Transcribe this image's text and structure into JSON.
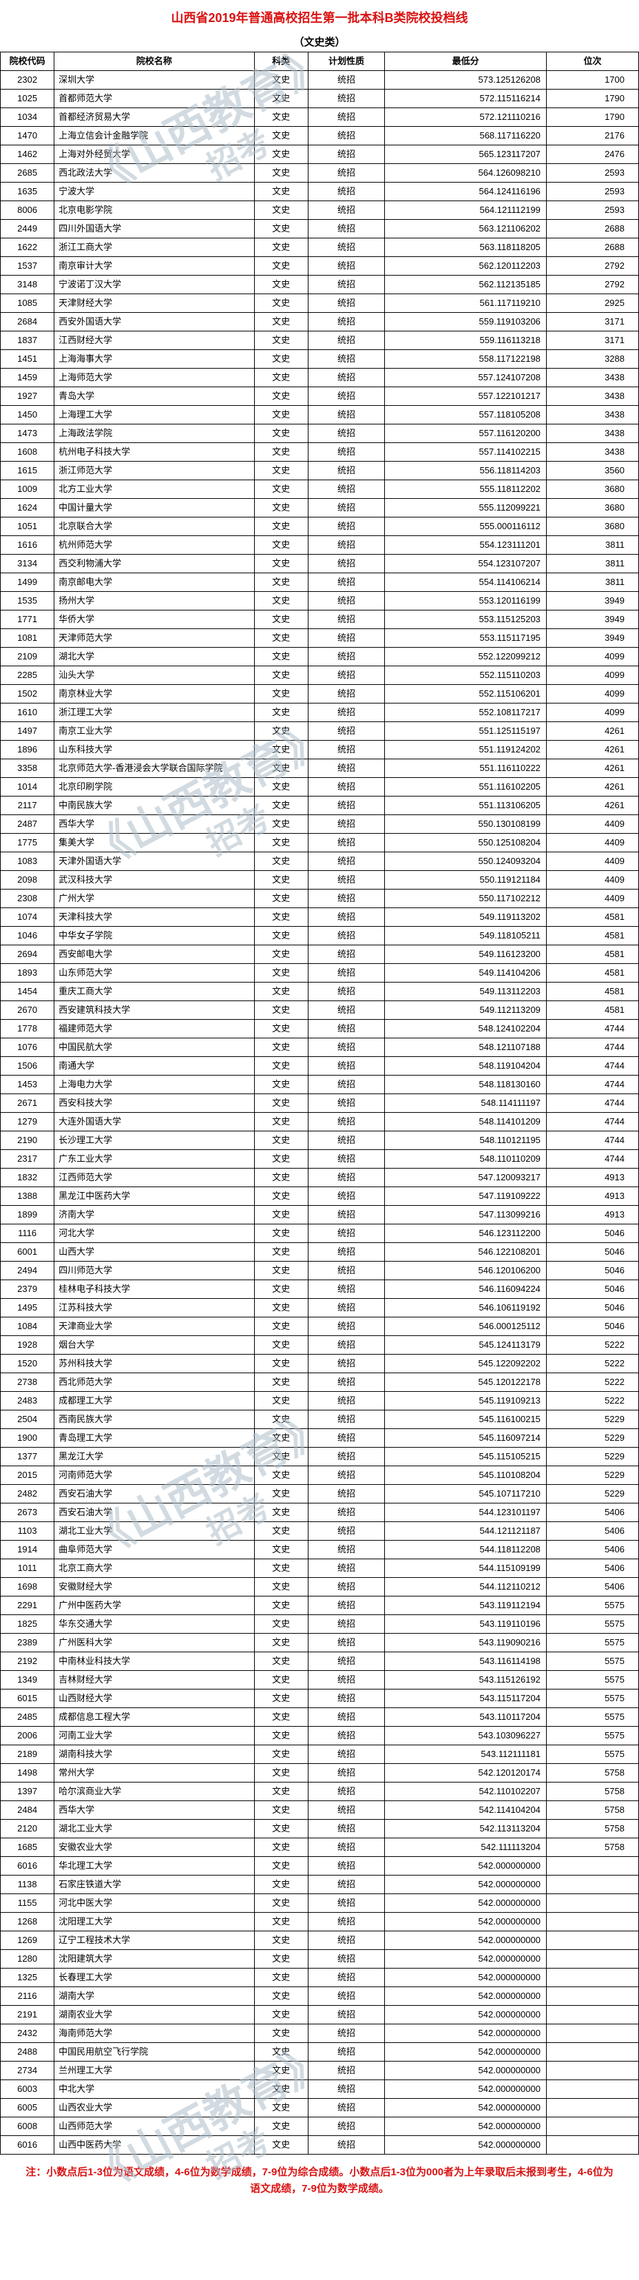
{
  "title": "山西省2019年普通高校招生第一批本科B类院校投档线",
  "subtitle": "（文史类）",
  "headers": {
    "code": "院校代码",
    "name": "院校名称",
    "subject": "科类",
    "plan": "计划性质",
    "score": "最低分",
    "rank": "位次"
  },
  "subject_val": "文史",
  "plan_val": "统招",
  "rows": [
    {
      "code": "2302",
      "name": "深圳大学",
      "score": "573.125126208",
      "rank": "1700"
    },
    {
      "code": "1025",
      "name": "首都师范大学",
      "score": "572.115116214",
      "rank": "1790"
    },
    {
      "code": "1034",
      "name": "首都经济贸易大学",
      "score": "572.121110216",
      "rank": "1790"
    },
    {
      "code": "1470",
      "name": "上海立信会计金融学院",
      "score": "568.117116220",
      "rank": "2176"
    },
    {
      "code": "1462",
      "name": "上海对外经贸大学",
      "score": "565.123117207",
      "rank": "2476"
    },
    {
      "code": "2685",
      "name": "西北政法大学",
      "score": "564.126098210",
      "rank": "2593"
    },
    {
      "code": "1635",
      "name": "宁波大学",
      "score": "564.124116196",
      "rank": "2593"
    },
    {
      "code": "8006",
      "name": "北京电影学院",
      "score": "564.121112199",
      "rank": "2593"
    },
    {
      "code": "2449",
      "name": "四川外国语大学",
      "score": "563.121106202",
      "rank": "2688"
    },
    {
      "code": "1622",
      "name": "浙江工商大学",
      "score": "563.118118205",
      "rank": "2688"
    },
    {
      "code": "1537",
      "name": "南京审计大学",
      "score": "562.120112203",
      "rank": "2792"
    },
    {
      "code": "3148",
      "name": "宁波诺丁汉大学",
      "score": "562.112135185",
      "rank": "2792"
    },
    {
      "code": "1085",
      "name": "天津财经大学",
      "score": "561.117119210",
      "rank": "2925"
    },
    {
      "code": "2684",
      "name": "西安外国语大学",
      "score": "559.119103206",
      "rank": "3171"
    },
    {
      "code": "1837",
      "name": "江西财经大学",
      "score": "559.116113218",
      "rank": "3171"
    },
    {
      "code": "1451",
      "name": "上海海事大学",
      "score": "558.117122198",
      "rank": "3288"
    },
    {
      "code": "1459",
      "name": "上海师范大学",
      "score": "557.124107208",
      "rank": "3438"
    },
    {
      "code": "1927",
      "name": "青岛大学",
      "score": "557.122101217",
      "rank": "3438"
    },
    {
      "code": "1450",
      "name": "上海理工大学",
      "score": "557.118105208",
      "rank": "3438"
    },
    {
      "code": "1473",
      "name": "上海政法学院",
      "score": "557.116120200",
      "rank": "3438"
    },
    {
      "code": "1608",
      "name": "杭州电子科技大学",
      "score": "557.114102215",
      "rank": "3438"
    },
    {
      "code": "1615",
      "name": "浙江师范大学",
      "score": "556.118114203",
      "rank": "3560"
    },
    {
      "code": "1009",
      "name": "北方工业大学",
      "score": "555.118112202",
      "rank": "3680"
    },
    {
      "code": "1624",
      "name": "中国计量大学",
      "score": "555.112099221",
      "rank": "3680"
    },
    {
      "code": "1051",
      "name": "北京联合大学",
      "score": "555.000116112",
      "rank": "3680"
    },
    {
      "code": "1616",
      "name": "杭州师范大学",
      "score": "554.123111201",
      "rank": "3811"
    },
    {
      "code": "3134",
      "name": "西交利物浦大学",
      "score": "554.123107207",
      "rank": "3811"
    },
    {
      "code": "1499",
      "name": "南京邮电大学",
      "score": "554.114106214",
      "rank": "3811"
    },
    {
      "code": "1535",
      "name": "扬州大学",
      "score": "553.120116199",
      "rank": "3949"
    },
    {
      "code": "1771",
      "name": "华侨大学",
      "score": "553.115125203",
      "rank": "3949"
    },
    {
      "code": "1081",
      "name": "天津师范大学",
      "score": "553.115117195",
      "rank": "3949"
    },
    {
      "code": "2109",
      "name": "湖北大学",
      "score": "552.122099212",
      "rank": "4099"
    },
    {
      "code": "2285",
      "name": "汕头大学",
      "score": "552.115110203",
      "rank": "4099"
    },
    {
      "code": "1502",
      "name": "南京林业大学",
      "score": "552.115106201",
      "rank": "4099"
    },
    {
      "code": "1610",
      "name": "浙江理工大学",
      "score": "552.108117217",
      "rank": "4099"
    },
    {
      "code": "1497",
      "name": "南京工业大学",
      "score": "551.125115197",
      "rank": "4261"
    },
    {
      "code": "1896",
      "name": "山东科技大学",
      "score": "551.119124202",
      "rank": "4261"
    },
    {
      "code": "3358",
      "name": "北京师范大学-香港浸会大学联合国际学院",
      "score": "551.116110222",
      "rank": "4261"
    },
    {
      "code": "1014",
      "name": "北京印刷学院",
      "score": "551.116102205",
      "rank": "4261"
    },
    {
      "code": "2117",
      "name": "中南民族大学",
      "score": "551.113106205",
      "rank": "4261"
    },
    {
      "code": "2487",
      "name": "西华大学",
      "score": "550.130108199",
      "rank": "4409"
    },
    {
      "code": "1775",
      "name": "集美大学",
      "score": "550.125108204",
      "rank": "4409"
    },
    {
      "code": "1083",
      "name": "天津外国语大学",
      "score": "550.124093204",
      "rank": "4409"
    },
    {
      "code": "2098",
      "name": "武汉科技大学",
      "score": "550.119121184",
      "rank": "4409"
    },
    {
      "code": "2308",
      "name": "广州大学",
      "score": "550.117102212",
      "rank": "4409"
    },
    {
      "code": "1074",
      "name": "天津科技大学",
      "score": "549.119113202",
      "rank": "4581"
    },
    {
      "code": "1046",
      "name": "中华女子学院",
      "score": "549.118105211",
      "rank": "4581"
    },
    {
      "code": "2694",
      "name": "西安邮电大学",
      "score": "549.116123200",
      "rank": "4581"
    },
    {
      "code": "1893",
      "name": "山东师范大学",
      "score": "549.114104206",
      "rank": "4581"
    },
    {
      "code": "1454",
      "name": "重庆工商大学",
      "score": "549.113112203",
      "rank": "4581"
    },
    {
      "code": "2670",
      "name": "西安建筑科技大学",
      "score": "549.112113209",
      "rank": "4581"
    },
    {
      "code": "1778",
      "name": "福建师范大学",
      "score": "548.124102204",
      "rank": "4744"
    },
    {
      "code": "1076",
      "name": "中国民航大学",
      "score": "548.121107188",
      "rank": "4744"
    },
    {
      "code": "1506",
      "name": "南通大学",
      "score": "548.119104204",
      "rank": "4744"
    },
    {
      "code": "1453",
      "name": "上海电力大学",
      "score": "548.118130160",
      "rank": "4744"
    },
    {
      "code": "2671",
      "name": "西安科技大学",
      "score": "548.114111197",
      "rank": "4744"
    },
    {
      "code": "1279",
      "name": "大连外国语大学",
      "score": "548.114101209",
      "rank": "4744"
    },
    {
      "code": "2190",
      "name": "长沙理工大学",
      "score": "548.110121195",
      "rank": "4744"
    },
    {
      "code": "2317",
      "name": "广东工业大学",
      "score": "548.110110209",
      "rank": "4744"
    },
    {
      "code": "1832",
      "name": "江西师范大学",
      "score": "547.120093217",
      "rank": "4913"
    },
    {
      "code": "1388",
      "name": "黑龙江中医药大学",
      "score": "547.119109222",
      "rank": "4913"
    },
    {
      "code": "1899",
      "name": "济南大学",
      "score": "547.113099216",
      "rank": "4913"
    },
    {
      "code": "1116",
      "name": "河北大学",
      "score": "546.123112200",
      "rank": "5046"
    },
    {
      "code": "6001",
      "name": "山西大学",
      "score": "546.122108201",
      "rank": "5046"
    },
    {
      "code": "2494",
      "name": "四川师范大学",
      "score": "546.120106200",
      "rank": "5046"
    },
    {
      "code": "2379",
      "name": "桂林电子科技大学",
      "score": "546.116094224",
      "rank": "5046"
    },
    {
      "code": "1495",
      "name": "江苏科技大学",
      "score": "546.106119192",
      "rank": "5046"
    },
    {
      "code": "1084",
      "name": "天津商业大学",
      "score": "546.000125112",
      "rank": "5046"
    },
    {
      "code": "1928",
      "name": "烟台大学",
      "score": "545.124113179",
      "rank": "5222"
    },
    {
      "code": "1520",
      "name": "苏州科技大学",
      "score": "545.122092202",
      "rank": "5222"
    },
    {
      "code": "2738",
      "name": "西北师范大学",
      "score": "545.120122178",
      "rank": "5222"
    },
    {
      "code": "2483",
      "name": "成都理工大学",
      "score": "545.119109213",
      "rank": "5222"
    },
    {
      "code": "2504",
      "name": "西南民族大学",
      "score": "545.116100215",
      "rank": "5229"
    },
    {
      "code": "1900",
      "name": "青岛理工大学",
      "score": "545.116097214",
      "rank": "5229"
    },
    {
      "code": "1377",
      "name": "黑龙江大学",
      "score": "545.115105215",
      "rank": "5229"
    },
    {
      "code": "2015",
      "name": "河南师范大学",
      "score": "545.110108204",
      "rank": "5229"
    },
    {
      "code": "2482",
      "name": "西安石油大学",
      "score": "545.107117210",
      "rank": "5229"
    },
    {
      "code": "2673",
      "name": "西安石油大学",
      "score": "544.123101197",
      "rank": "5406"
    },
    {
      "code": "1103",
      "name": "湖北工业大学",
      "score": "544.121121187",
      "rank": "5406"
    },
    {
      "code": "1914",
      "name": "曲阜师范大学",
      "score": "544.118112208",
      "rank": "5406"
    },
    {
      "code": "1011",
      "name": "北京工商大学",
      "score": "544.115109199",
      "rank": "5406"
    },
    {
      "code": "1698",
      "name": "安徽财经大学",
      "score": "544.112110212",
      "rank": "5406"
    },
    {
      "code": "2291",
      "name": "广州中医药大学",
      "score": "543.119112194",
      "rank": "5575"
    },
    {
      "code": "1825",
      "name": "华东交通大学",
      "score": "543.119110196",
      "rank": "5575"
    },
    {
      "code": "2389",
      "name": "广州医科大学",
      "score": "543.119090216",
      "rank": "5575"
    },
    {
      "code": "2192",
      "name": "中南林业科技大学",
      "score": "543.116114198",
      "rank": "5575"
    },
    {
      "code": "1349",
      "name": "吉林财经大学",
      "score": "543.115126192",
      "rank": "5575"
    },
    {
      "code": "6015",
      "name": "山西财经大学",
      "score": "543.115117204",
      "rank": "5575"
    },
    {
      "code": "2485",
      "name": "成都信息工程大学",
      "score": "543.110117204",
      "rank": "5575"
    },
    {
      "code": "2006",
      "name": "河南工业大学",
      "score": "543.103096227",
      "rank": "5575"
    },
    {
      "code": "2189",
      "name": "湖南科技大学",
      "score": "543.112111181",
      "rank": "5575"
    },
    {
      "code": "1498",
      "name": "常州大学",
      "score": "542.120120174",
      "rank": "5758"
    },
    {
      "code": "1397",
      "name": "哈尔滨商业大学",
      "score": "542.110102207",
      "rank": "5758"
    },
    {
      "code": "2484",
      "name": "西华大学",
      "score": "542.114104204",
      "rank": "5758"
    },
    {
      "code": "2120",
      "name": "湖北工业大学",
      "score": "542.113113204",
      "rank": "5758"
    },
    {
      "code": "1685",
      "name": "安徽农业大学",
      "score": "542.111113204",
      "rank": "5758"
    },
    {
      "code": "6016",
      "name": "华北理工大学",
      "score": "542.000000000",
      "rank": ""
    },
    {
      "code": "1138",
      "name": "石家庄铁道大学",
      "score": "542.000000000",
      "rank": ""
    },
    {
      "code": "1155",
      "name": "河北中医大学",
      "score": "542.000000000",
      "rank": ""
    },
    {
      "code": "1268",
      "name": "沈阳理工大学",
      "score": "542.000000000",
      "rank": ""
    },
    {
      "code": "1269",
      "name": "辽宁工程技术大学",
      "score": "542.000000000",
      "rank": ""
    },
    {
      "code": "1280",
      "name": "沈阳建筑大学",
      "score": "542.000000000",
      "rank": ""
    },
    {
      "code": "1325",
      "name": "长春理工大学",
      "score": "542.000000000",
      "rank": ""
    },
    {
      "code": "2116",
      "name": "湖南大学",
      "score": "542.000000000",
      "rank": ""
    },
    {
      "code": "2191",
      "name": "湖南农业大学",
      "score": "542.000000000",
      "rank": ""
    },
    {
      "code": "2432",
      "name": "海南师范大学",
      "score": "542.000000000",
      "rank": ""
    },
    {
      "code": "2488",
      "name": "中国民用航空飞行学院",
      "score": "542.000000000",
      "rank": ""
    },
    {
      "code": "2734",
      "name": "兰州理工大学",
      "score": "542.000000000",
      "rank": ""
    },
    {
      "code": "6003",
      "name": "中北大学",
      "score": "542.000000000",
      "rank": ""
    },
    {
      "code": "6005",
      "name": "山西农业大学",
      "score": "542.000000000",
      "rank": ""
    },
    {
      "code": "6008",
      "name": "山西师范大学",
      "score": "542.000000000",
      "rank": ""
    },
    {
      "code": "6016",
      "name": "山西中医药大学",
      "score": "542.000000000",
      "rank": ""
    }
  ],
  "footnote": "注：小数点后1-3位为语文成绩，4-6位为数学成绩，7-9位为综合成绩。小数点后1-3位为000者为上年录取后未报到考生，4-6位为语文成绩，7-9位为数学成绩。"
}
